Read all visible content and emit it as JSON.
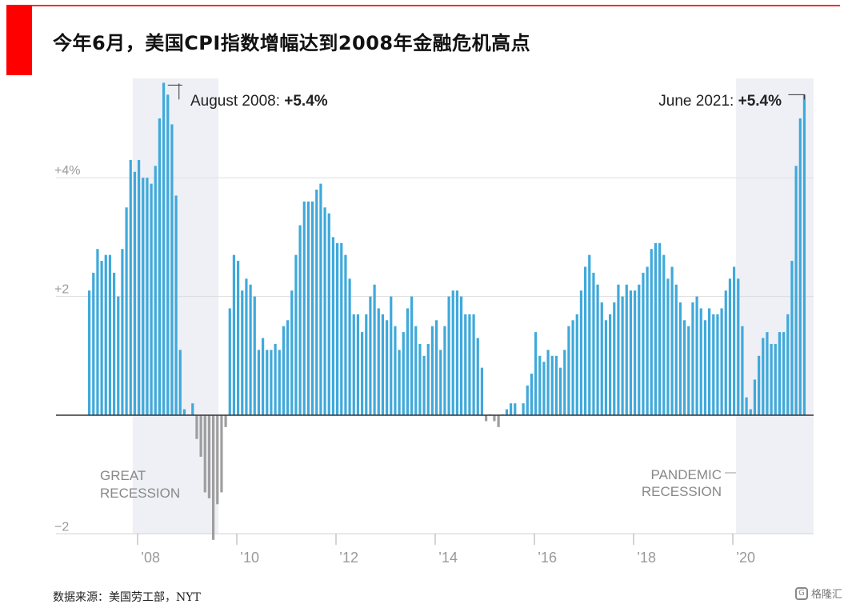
{
  "header": {
    "title": "今年6月，美国CPI指数增幅达到2008年金融危机高点"
  },
  "footer": {
    "source": "数据来源：美国劳工部，NYT",
    "watermark": "格隆汇",
    "watermark_icon": "G"
  },
  "colors": {
    "accent_red": "#ff0000",
    "positive_bar": "#3fa9db",
    "negative_bar": "#9e9e9e",
    "recession_shade": "#eef0f5",
    "gridline": "#dddddd",
    "axis_text": "#999999"
  },
  "chart_data": {
    "type": "bar",
    "ylim": [
      -2.1,
      5.6
    ],
    "yticks": [
      {
        "value": 4,
        "label": "+4%"
      },
      {
        "value": 2,
        "label": "+2"
      },
      {
        "value": -2,
        "label": "−2"
      }
    ],
    "x_start": "2007-01",
    "x_end": "2021-06",
    "xticks": [
      {
        "date": "2008-01",
        "label": "’08"
      },
      {
        "date": "2010-01",
        "label": "’10"
      },
      {
        "date": "2012-01",
        "label": "’12"
      },
      {
        "date": "2014-01",
        "label": "’14"
      },
      {
        "date": "2016-01",
        "label": "’16"
      },
      {
        "date": "2018-01",
        "label": "’18"
      },
      {
        "date": "2020-01",
        "label": "’20"
      }
    ],
    "recessions": [
      {
        "start": "2007-12",
        "end": "2009-06",
        "label_lines": [
          "GREAT",
          "RECESSION"
        ]
      },
      {
        "start": "2020-02",
        "end": "2021-06",
        "label_lines": [
          "PANDEMIC",
          "RECESSION"
        ]
      }
    ],
    "annotations": [
      {
        "date": "2008-08",
        "value": 5.4,
        "text": "August 2008: ",
        "bold": "+5.4%"
      },
      {
        "date": "2021-06",
        "value": 5.4,
        "text": "June 2021: ",
        "bold": "+5.4%"
      }
    ],
    "series": [
      {
        "values": [
          2.1,
          2.4,
          2.8,
          2.6,
          2.7,
          2.7,
          2.4,
          2.0,
          2.8,
          3.5,
          4.3,
          4.1,
          4.3,
          4.0,
          4.0,
          3.9,
          4.2,
          5.0,
          5.6,
          5.4,
          4.9,
          3.7,
          1.1,
          0.1,
          0.0,
          0.2,
          -0.4,
          -0.7,
          -1.3,
          -1.4,
          -2.1,
          -1.5,
          -1.3,
          -0.2,
          1.8,
          2.7,
          2.6,
          2.1,
          2.3,
          2.2,
          2.0,
          1.1,
          1.3,
          1.1,
          1.1,
          1.2,
          1.1,
          1.5,
          1.6,
          2.1,
          2.7,
          3.2,
          3.6,
          3.6,
          3.6,
          3.8,
          3.9,
          3.5,
          3.4,
          3.0,
          2.9,
          2.9,
          2.7,
          2.3,
          1.7,
          1.7,
          1.4,
          1.7,
          2.0,
          2.2,
          1.8,
          1.7,
          1.6,
          2.0,
          1.5,
          1.1,
          1.4,
          1.8,
          2.0,
          1.5,
          1.2,
          1.0,
          1.2,
          1.5,
          1.6,
          1.1,
          1.5,
          2.0,
          2.1,
          2.1,
          2.0,
          1.7,
          1.7,
          1.7,
          1.3,
          0.8,
          -0.1,
          0.0,
          -0.1,
          -0.2,
          0.0,
          0.1,
          0.2,
          0.2,
          0.0,
          0.2,
          0.5,
          0.7,
          1.4,
          1.0,
          0.9,
          1.1,
          1.0,
          1.0,
          0.8,
          1.1,
          1.5,
          1.6,
          1.7,
          2.1,
          2.5,
          2.7,
          2.4,
          2.2,
          1.9,
          1.6,
          1.7,
          1.9,
          2.2,
          2.0,
          2.2,
          2.1,
          2.1,
          2.2,
          2.4,
          2.5,
          2.8,
          2.9,
          2.9,
          2.7,
          2.3,
          2.5,
          2.2,
          1.9,
          1.6,
          1.5,
          1.9,
          2.0,
          1.8,
          1.6,
          1.8,
          1.7,
          1.7,
          1.8,
          2.1,
          2.3,
          2.5,
          2.3,
          1.5,
          0.3,
          0.1,
          0.6,
          1.0,
          1.3,
          1.4,
          1.2,
          1.2,
          1.4,
          1.4,
          1.7,
          2.6,
          4.2,
          5.0,
          5.4
        ]
      }
    ]
  }
}
